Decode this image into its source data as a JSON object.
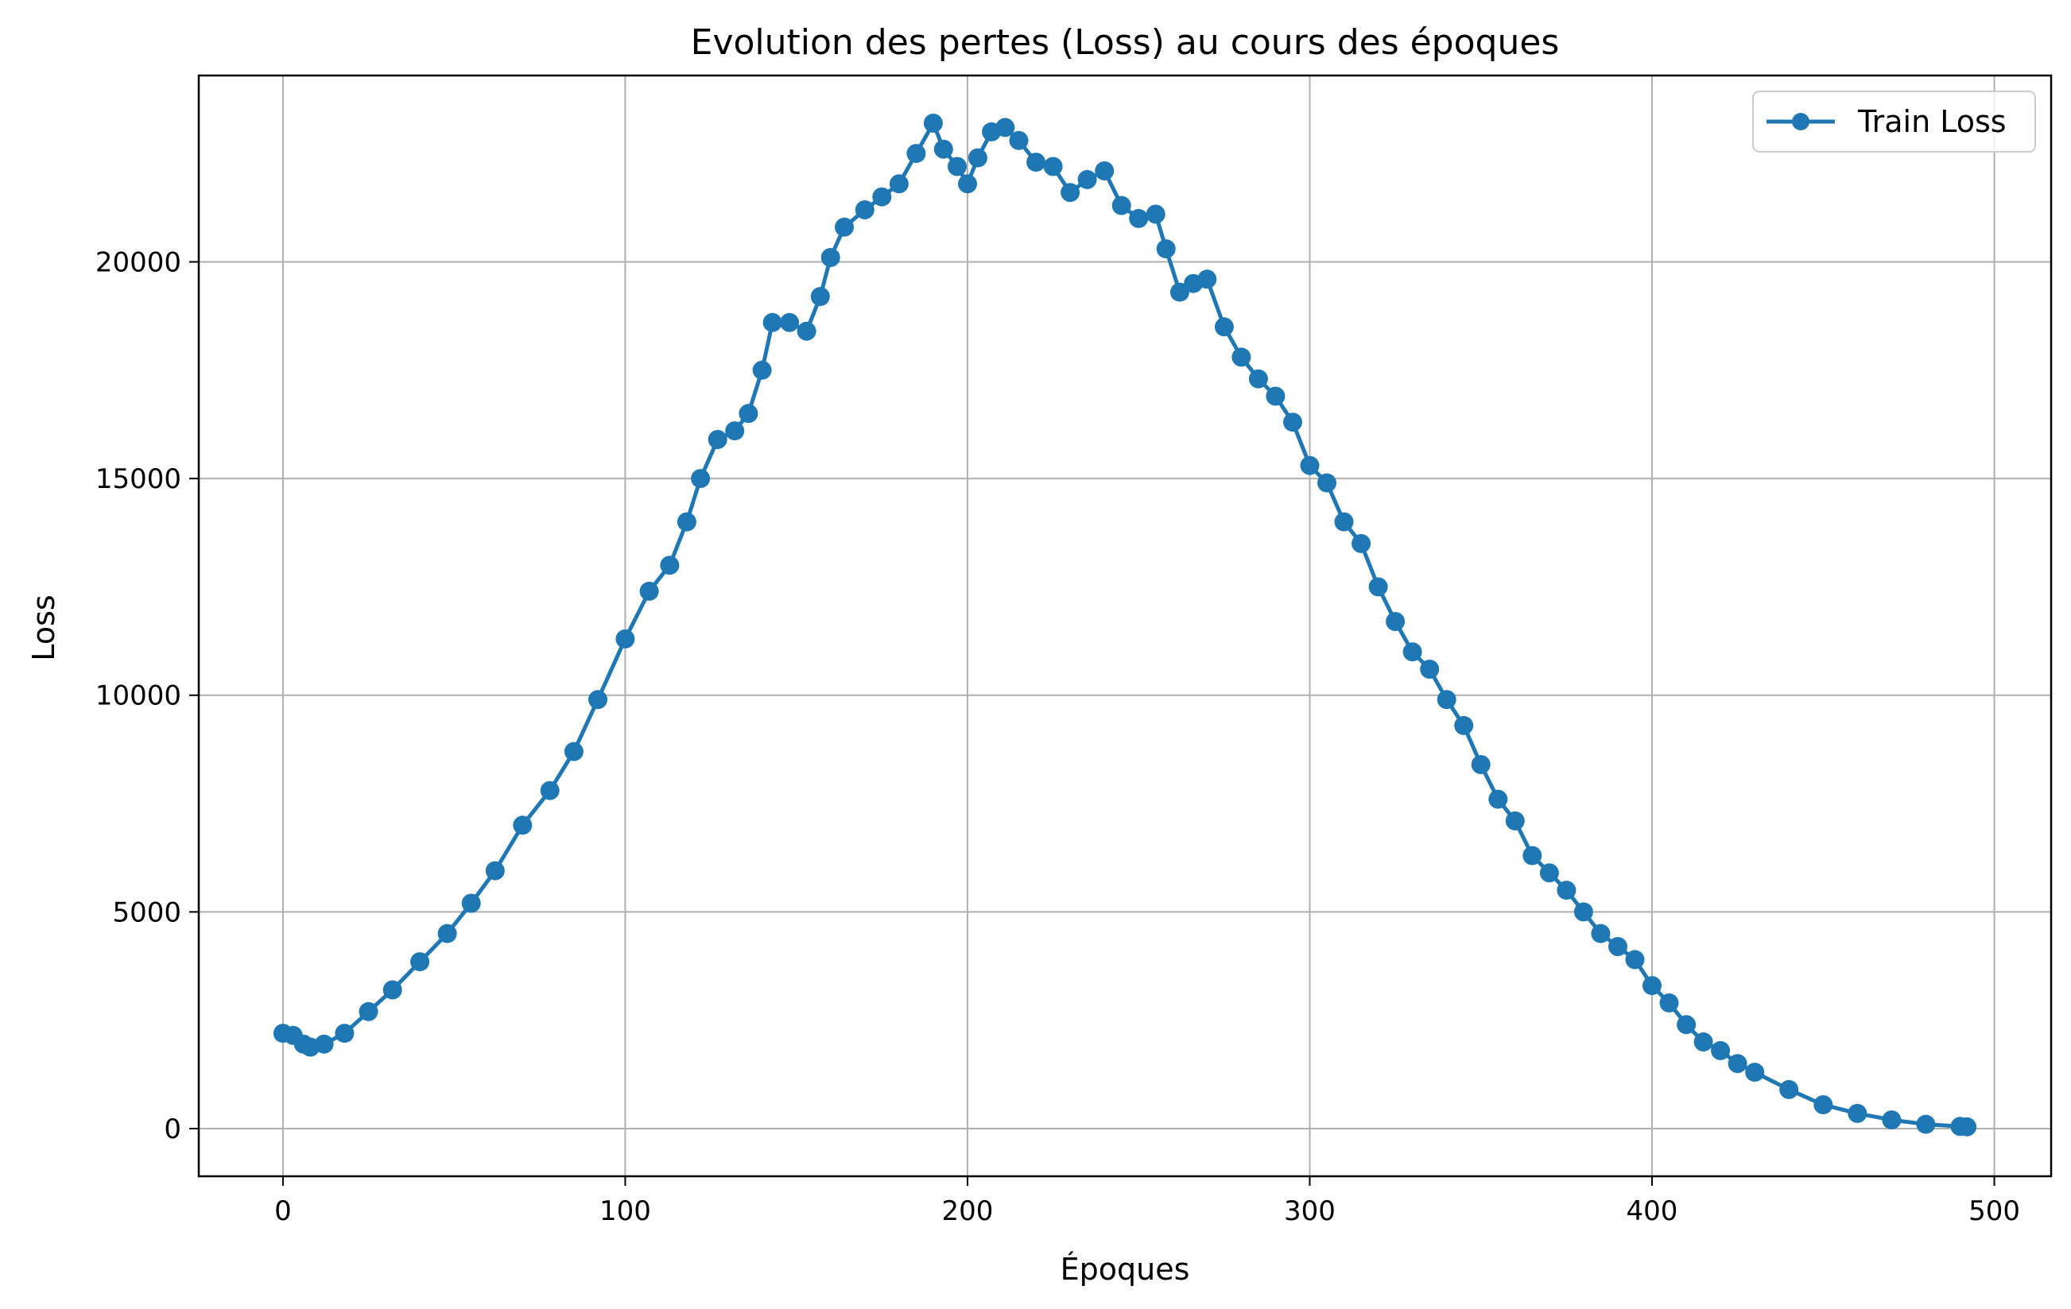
{
  "chart_data": {
    "type": "line",
    "title": "Evolution des pertes (Loss) au cours des époques",
    "xlabel": "Époques",
    "ylabel": "Loss",
    "xlim": [
      -24.6,
      516.6
    ],
    "ylim": [
      -1100,
      24300
    ],
    "x_ticks": [
      0,
      100,
      200,
      300,
      400,
      500
    ],
    "x_tick_labels": [
      "0",
      "100",
      "200",
      "300",
      "400",
      "500"
    ],
    "y_ticks": [
      0,
      5000,
      10000,
      15000,
      20000
    ],
    "y_tick_labels": [
      "0",
      "5000",
      "10000",
      "15000",
      "20000"
    ],
    "grid": true,
    "legend_position": "top-right",
    "colors": {
      "series": "#1f77b4",
      "grid": "#b0b0b0",
      "frame": "#000000"
    },
    "series": [
      {
        "name": "Train Loss",
        "marker": "circle",
        "anchors": [
          [
            0,
            2200
          ],
          [
            3,
            2150
          ],
          [
            6,
            1950
          ],
          [
            8,
            1880
          ],
          [
            12,
            1950
          ],
          [
            18,
            2200
          ],
          [
            25,
            2700
          ],
          [
            32,
            3200
          ],
          [
            40,
            3850
          ],
          [
            48,
            4500
          ],
          [
            55,
            5200
          ],
          [
            62,
            5950
          ],
          [
            70,
            7000
          ],
          [
            78,
            7800
          ],
          [
            85,
            8700
          ],
          [
            92,
            9900
          ],
          [
            100,
            11300
          ],
          [
            107,
            12400
          ],
          [
            113,
            13000
          ],
          [
            118,
            14000
          ],
          [
            122,
            15000
          ],
          [
            127,
            15900
          ],
          [
            132,
            16100
          ],
          [
            136,
            16500
          ],
          [
            140,
            17500
          ],
          [
            143,
            18600
          ],
          [
            148,
            18600
          ],
          [
            153,
            18400
          ],
          [
            157,
            19200
          ],
          [
            160,
            20100
          ],
          [
            164,
            20800
          ],
          [
            170,
            21200
          ],
          [
            175,
            21500
          ],
          [
            180,
            21800
          ],
          [
            185,
            22500
          ],
          [
            190,
            23200
          ],
          [
            193,
            22600
          ],
          [
            197,
            22200
          ],
          [
            200,
            21800
          ],
          [
            203,
            22400
          ],
          [
            207,
            23000
          ],
          [
            211,
            23100
          ],
          [
            215,
            22800
          ],
          [
            220,
            22300
          ],
          [
            225,
            22200
          ],
          [
            230,
            21600
          ],
          [
            235,
            21900
          ],
          [
            240,
            22100
          ],
          [
            245,
            21300
          ],
          [
            250,
            21000
          ],
          [
            255,
            21100
          ],
          [
            258,
            20300
          ],
          [
            262,
            19300
          ],
          [
            266,
            19500
          ],
          [
            270,
            19600
          ],
          [
            275,
            18500
          ],
          [
            280,
            17800
          ],
          [
            285,
            17300
          ],
          [
            290,
            16900
          ],
          [
            295,
            16300
          ],
          [
            300,
            15300
          ],
          [
            305,
            14900
          ],
          [
            310,
            14000
          ],
          [
            315,
            13500
          ],
          [
            320,
            12500
          ],
          [
            325,
            11700
          ],
          [
            330,
            11000
          ],
          [
            335,
            10600
          ],
          [
            340,
            9900
          ],
          [
            345,
            9300
          ],
          [
            350,
            8400
          ],
          [
            355,
            7600
          ],
          [
            360,
            7100
          ],
          [
            365,
            6300
          ],
          [
            370,
            5900
          ],
          [
            375,
            5500
          ],
          [
            380,
            5000
          ],
          [
            385,
            4500
          ],
          [
            390,
            4200
          ],
          [
            395,
            3900
          ],
          [
            400,
            3300
          ],
          [
            405,
            2900
          ],
          [
            410,
            2400
          ],
          [
            415,
            2000
          ],
          [
            420,
            1800
          ],
          [
            425,
            1500
          ],
          [
            430,
            1300
          ],
          [
            440,
            900
          ],
          [
            450,
            550
          ],
          [
            460,
            350
          ],
          [
            470,
            200
          ],
          [
            480,
            100
          ],
          [
            490,
            50
          ],
          [
            492,
            40
          ]
        ]
      }
    ]
  }
}
